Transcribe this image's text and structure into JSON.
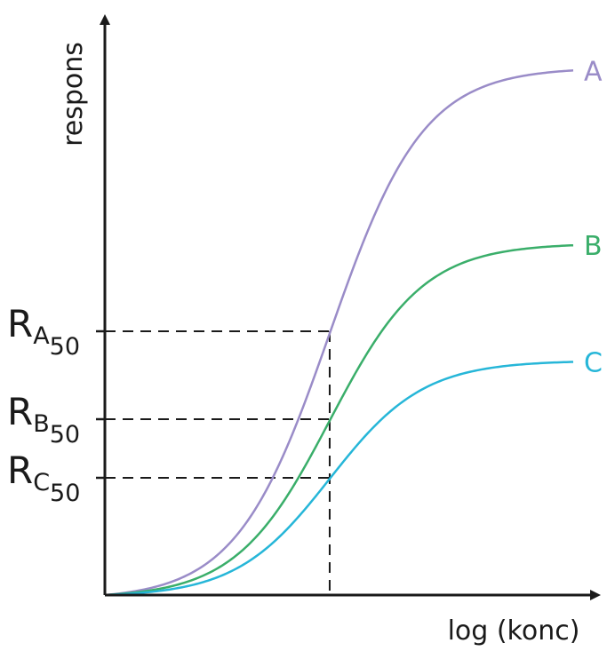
{
  "chart_data": {
    "type": "line",
    "title": "",
    "xlabel": "log (konc)",
    "ylabel": "respons",
    "xlim": [
      0,
      10
    ],
    "ylim": [
      0,
      10
    ],
    "ec50_x": 4.8,
    "colors": {
      "A": "#9a8cc8",
      "B": "#3aae6a",
      "C": "#26b6d8"
    },
    "series": [
      {
        "label": "A",
        "max": 9.0,
        "half": 4.5,
        "color": "#9a8cc8"
      },
      {
        "label": "B",
        "max": 6.0,
        "half": 3.0,
        "color": "#3aae6a"
      },
      {
        "label": "C",
        "max": 4.0,
        "half": 2.0,
        "color": "#26b6d8"
      }
    ],
    "ref_levels": [
      {
        "main": "R",
        "sub": "A",
        "subsub": "50",
        "value": 4.5
      },
      {
        "main": "R",
        "sub": "B",
        "subsub": "50",
        "value": 3.0
      },
      {
        "main": "R",
        "sub": "C",
        "subsub": "50",
        "value": 2.0
      }
    ],
    "grid": false,
    "legend": "none"
  }
}
